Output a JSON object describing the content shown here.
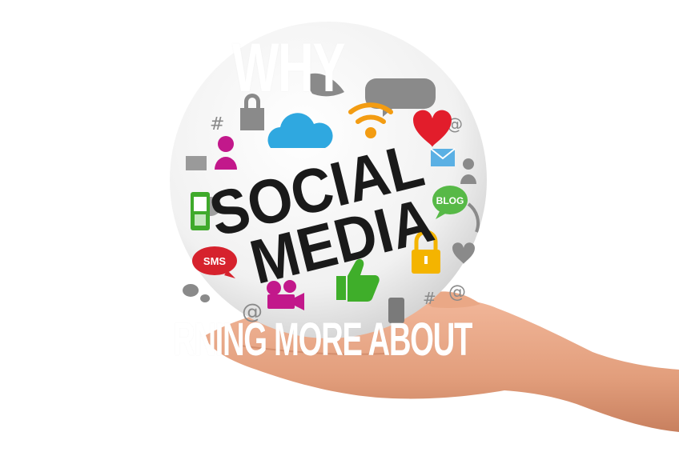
{
  "image": {
    "sphere_text_line1": "SOCIAL",
    "sphere_text_line2": "MEDIA",
    "blog_label": "BLOG",
    "sms_label": "SMS",
    "overlay_top": "WHY",
    "overlay_bottom": "RNING MORE ABOUT"
  },
  "colors": {
    "wifi": "#f39c12",
    "heart": "#e21d2b",
    "cloud": "#2fa8e0",
    "person": "#c2188b",
    "phone": "#3faa2b",
    "blog": "#57b947",
    "envelope": "#5bb0e4",
    "lock": "#f4b400",
    "thumb": "#3fae2a",
    "sms": "#d6222d",
    "camera": "#c2188b",
    "skin": "#e8a383"
  }
}
